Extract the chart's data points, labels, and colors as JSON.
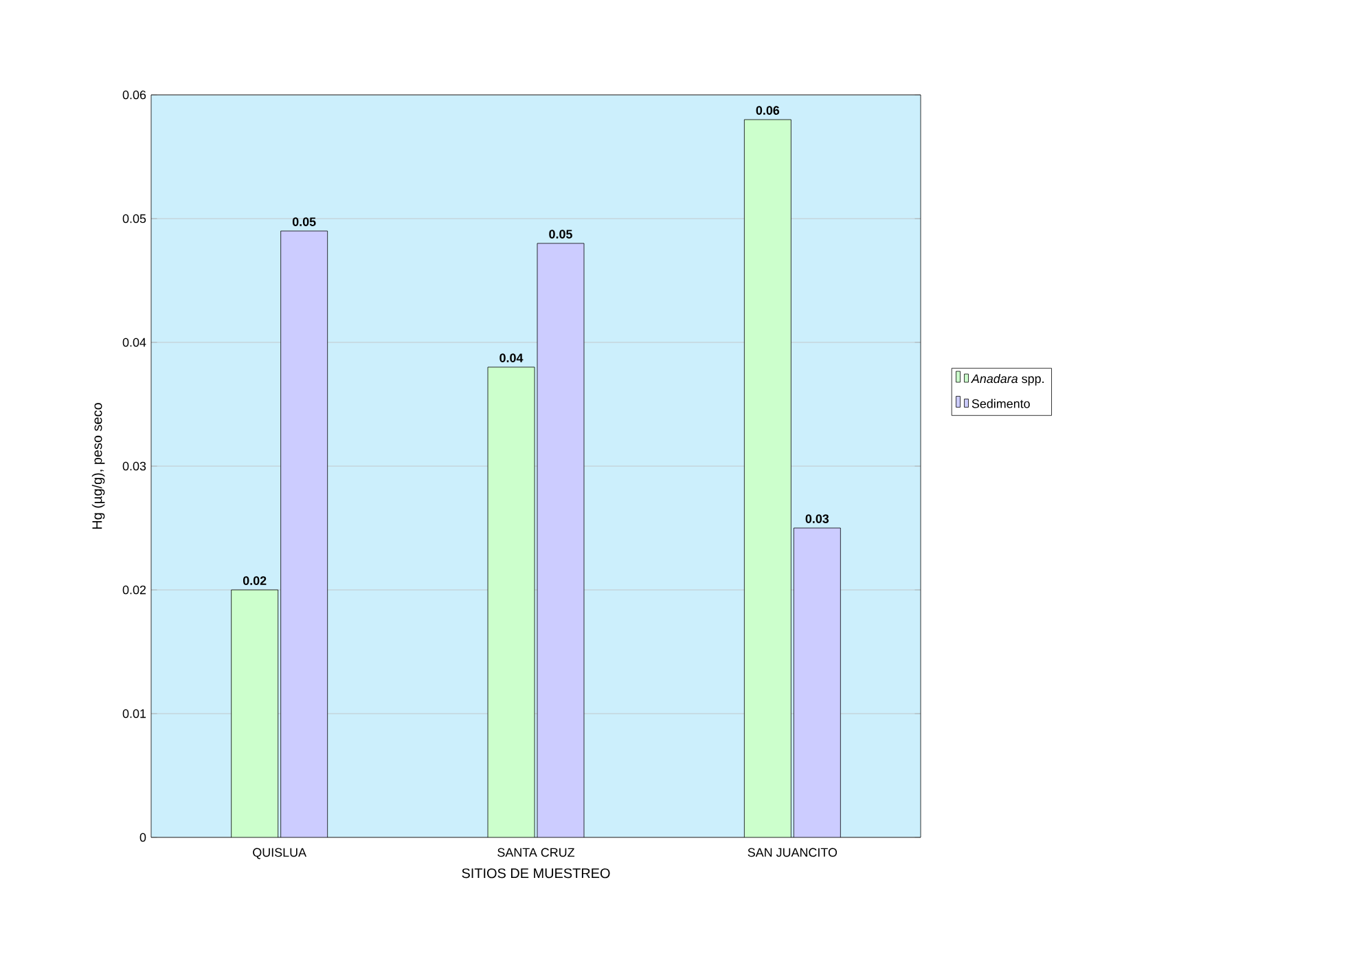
{
  "chart_data": {
    "type": "bar",
    "categories": [
      "QUISLUA",
      "SANTA CRUZ",
      "SAN JUANCITO"
    ],
    "series": [
      {
        "name": "*Anadara* spp.",
        "color": "#ccffcc",
        "values": [
          0.02,
          0.038,
          0.058
        ],
        "value_labels": [
          "0.02",
          "0.04",
          "0.06"
        ]
      },
      {
        "name": "Sedimento",
        "color": "#ccccff",
        "values": [
          0.049,
          0.048,
          0.025
        ],
        "value_labels": [
          "0.05",
          "0.05",
          "0.03"
        ]
      }
    ],
    "xlabel": "SITIOS DE MUESTREO",
    "ylabel": "Hg (µg/g), peso seco",
    "ylim": [
      0,
      0.06
    ],
    "yticks": [
      0,
      0.01,
      0.02,
      0.03,
      0.04,
      0.05,
      0.06
    ],
    "grid": "y",
    "legend": "right"
  }
}
